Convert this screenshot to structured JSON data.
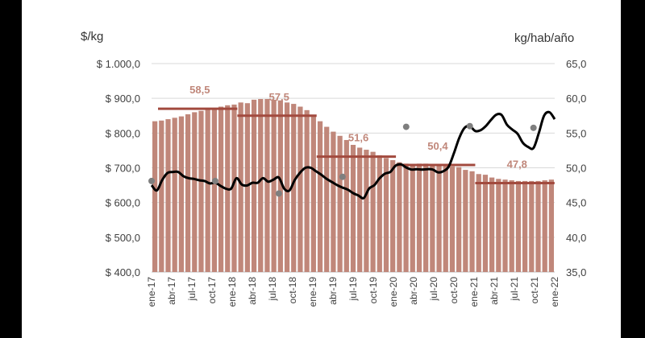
{
  "chart_data": {
    "type": "bar",
    "ylabel_left": "$/kg",
    "ylabel_right": "kg/hab/año",
    "ylim_left": [
      400,
      1000
    ],
    "ylim_right": [
      35,
      65
    ],
    "yticks_left": [
      "$ 400,0",
      "$ 500,0",
      "$ 600,0",
      "$ 700,0",
      "$ 800,0",
      "$ 900,0",
      "$ 1.000,0"
    ],
    "yticks_right": [
      "35,0",
      "40,0",
      "45,0",
      "50,0",
      "55,0",
      "60,0",
      "65,0"
    ],
    "x_tick_labels": [
      "ene-17",
      "abr-17",
      "jul-17",
      "oct-17",
      "ene-18",
      "abr-18",
      "jul-18",
      "oct-18",
      "ene-19",
      "abr-19",
      "jul-19",
      "oct-19",
      "ene-20",
      "abr-20",
      "jul-20",
      "oct-20",
      "ene-21",
      "abr-21",
      "jul-21",
      "oct-21",
      "ene-22"
    ],
    "grid": "horizontal",
    "colors": {
      "bars": "#c0877a",
      "line": "#000000",
      "averages": "#a24a3e",
      "annotations": "#c0877a",
      "dots": "#7f7f7f"
    },
    "series": [
      {
        "type": "bar",
        "axis": "right",
        "values": [
          56.7,
          56.8,
          57.0,
          57.2,
          57.4,
          57.7,
          58.0,
          58.2,
          58.4,
          58.6,
          58.8,
          59.0,
          59.1,
          59.4,
          59.3,
          59.8,
          59.9,
          59.9,
          59.8,
          59.7,
          59.4,
          59.2,
          58.8,
          58.3,
          57.5,
          56.7,
          55.9,
          55.2,
          54.6,
          54.0,
          53.3,
          52.9,
          52.6,
          52.3,
          51.8,
          51.4,
          51.1,
          50.8,
          50.6,
          50.5,
          50.6,
          50.6,
          50.4,
          50.5,
          50.3,
          50.2,
          50.1,
          49.7,
          49.5,
          49.1,
          49.0,
          48.6,
          48.4,
          48.3,
          48.2,
          48.1,
          48.1,
          48.1,
          48.1,
          48.2,
          48.3
        ]
      },
      {
        "type": "line",
        "axis": "left",
        "values": [
          650,
          635,
          665,
          685,
          688,
          688,
          676,
          670,
          668,
          664,
          662,
          655,
          657,
          648,
          640,
          640,
          670,
          652,
          649,
          657,
          657,
          670,
          660,
          666,
          672,
          640,
          635,
          665,
          686,
          700,
          700,
          690,
          680,
          668,
          659,
          650,
          643,
          637,
          627,
          620,
          613,
          640,
          650,
          670,
          683,
          688,
          706,
          710,
          701,
          695,
          696,
          695,
          696,
          695,
          687,
          690,
          703,
          742,
          786,
          815,
          820,
          806,
          808,
          820,
          838,
          853,
          852,
          824,
          810,
          798,
          772,
          760,
          757,
          800,
          850,
          860,
          840
        ]
      },
      {
        "type": "scatter",
        "axis": "left",
        "x_index": [
          0,
          12,
          24,
          36,
          48,
          60,
          72
        ],
        "values": [
          662,
          662,
          626,
          674,
          818,
          820,
          815
        ]
      }
    ],
    "annual_averages": [
      {
        "label": "58,5",
        "value": 58.5,
        "start": 0,
        "end": 11
      },
      {
        "label": "57,5",
        "value": 57.5,
        "start": 12,
        "end": 23
      },
      {
        "label": "51,6",
        "value": 51.6,
        "start": 24,
        "end": 35
      },
      {
        "label": "50,4",
        "value": 50.4,
        "start": 36,
        "end": 47
      },
      {
        "label": "47,8",
        "value": 47.8,
        "start": 48,
        "end": 59
      }
    ]
  }
}
